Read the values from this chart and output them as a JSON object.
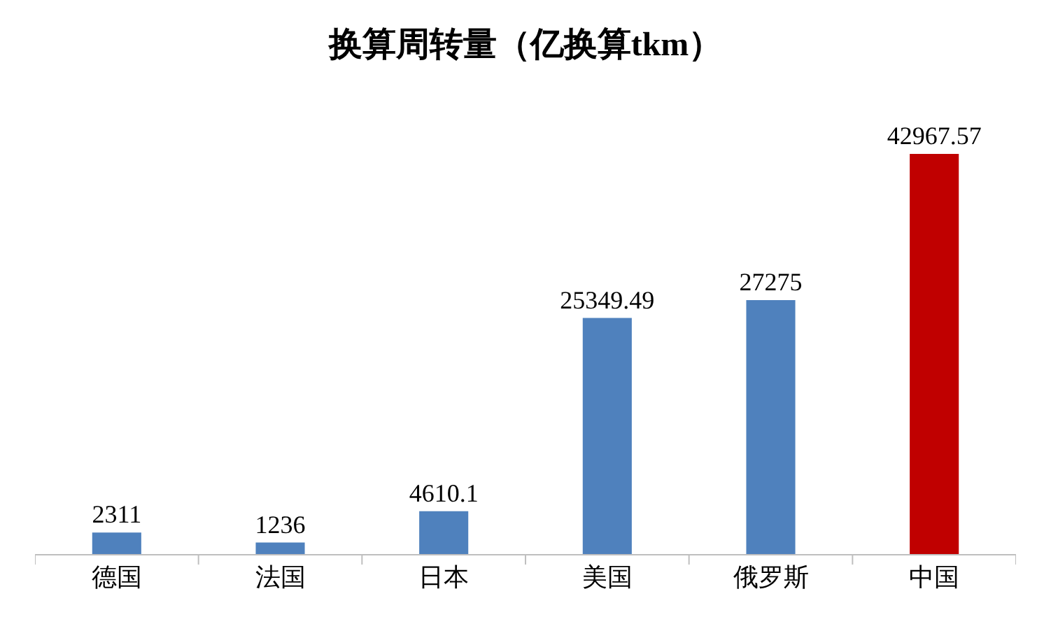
{
  "chart_data": {
    "type": "bar",
    "title": "换算周转量（亿换算tkm）",
    "categories": [
      "德国",
      "法国",
      "日本",
      "美国",
      "俄罗斯",
      "中国"
    ],
    "values": [
      2311,
      1236,
      4610.1,
      25349.49,
      27275,
      42967.57
    ],
    "colors": [
      "#4f81bd",
      "#4f81bd",
      "#4f81bd",
      "#4f81bd",
      "#4f81bd",
      "#c00000"
    ],
    "data_labels": true
  }
}
